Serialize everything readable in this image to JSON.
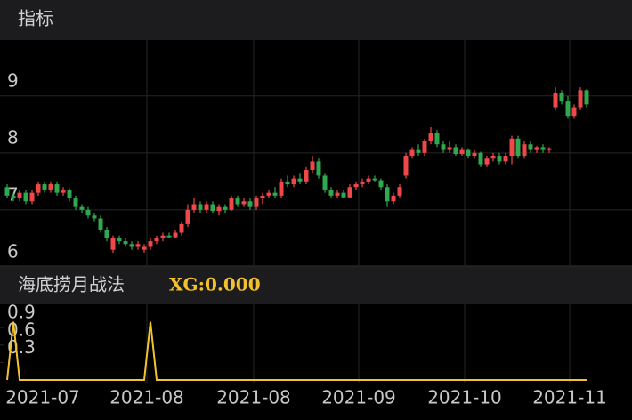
{
  "header": {
    "title": "指标"
  },
  "chart_data": [
    {
      "type": "candlestick",
      "ylim": [
        6.03,
        9.98
      ],
      "yticks": [
        6,
        7,
        8,
        9
      ],
      "grid": true,
      "up_color": "#f04848",
      "down_color": "#2fa84f",
      "x_labels": [
        "2021-07",
        "2021-08",
        "2021-08",
        "2021-09",
        "2021-10",
        "2021-11"
      ],
      "candles": [
        [
          7.4,
          7.45,
          7.2,
          7.25
        ],
        [
          7.25,
          7.3,
          7.15,
          7.2
        ],
        [
          7.2,
          7.35,
          7.15,
          7.3
        ],
        [
          7.3,
          7.35,
          7.1,
          7.15
        ],
        [
          7.15,
          7.35,
          7.1,
          7.3
        ],
        [
          7.3,
          7.5,
          7.25,
          7.45
        ],
        [
          7.45,
          7.5,
          7.3,
          7.35
        ],
        [
          7.35,
          7.5,
          7.3,
          7.45
        ],
        [
          7.45,
          7.5,
          7.25,
          7.3
        ],
        [
          7.3,
          7.4,
          7.25,
          7.35
        ],
        [
          7.35,
          7.38,
          7.15,
          7.2
        ],
        [
          7.2,
          7.25,
          7.0,
          7.05
        ],
        [
          7.05,
          7.1,
          6.95,
          7.0
        ],
        [
          7.0,
          7.05,
          6.85,
          6.9
        ],
        [
          6.9,
          6.95,
          6.8,
          6.85
        ],
        [
          6.85,
          6.9,
          6.6,
          6.65
        ],
        [
          6.65,
          6.7,
          6.45,
          6.5
        ],
        [
          6.3,
          6.55,
          6.25,
          6.5
        ],
        [
          6.5,
          6.55,
          6.4,
          6.45
        ],
        [
          6.45,
          6.5,
          6.35,
          6.4
        ],
        [
          6.4,
          6.45,
          6.3,
          6.35
        ],
        [
          6.35,
          6.45,
          6.3,
          6.4
        ],
        [
          6.3,
          6.4,
          6.25,
          6.35
        ],
        [
          6.35,
          6.5,
          6.3,
          6.45
        ],
        [
          6.45,
          6.55,
          6.4,
          6.5
        ],
        [
          6.5,
          6.6,
          6.45,
          6.55
        ],
        [
          6.55,
          6.6,
          6.5,
          6.52
        ],
        [
          6.52,
          6.65,
          6.5,
          6.6
        ],
        [
          6.6,
          6.8,
          6.55,
          6.75
        ],
        [
          6.75,
          7.1,
          6.7,
          7.0
        ],
        [
          7.0,
          7.2,
          6.95,
          7.1
        ],
        [
          7.1,
          7.15,
          6.95,
          7.0
        ],
        [
          7.0,
          7.15,
          6.95,
          7.1
        ],
        [
          7.1,
          7.15,
          6.95,
          6.98
        ],
        [
          6.98,
          7.1,
          6.9,
          7.05
        ],
        [
          7.05,
          7.1,
          6.95,
          7.0
        ],
        [
          7.0,
          7.25,
          6.98,
          7.2
        ],
        [
          7.2,
          7.25,
          7.05,
          7.1
        ],
        [
          7.1,
          7.2,
          7.05,
          7.15
        ],
        [
          7.15,
          7.2,
          7.0,
          7.05
        ],
        [
          7.05,
          7.25,
          7.0,
          7.2
        ],
        [
          7.2,
          7.3,
          7.1,
          7.25
        ],
        [
          7.25,
          7.35,
          7.2,
          7.3
        ],
        [
          7.3,
          7.4,
          7.2,
          7.25
        ],
        [
          7.25,
          7.55,
          7.2,
          7.5
        ],
        [
          7.5,
          7.6,
          7.4,
          7.45
        ],
        [
          7.45,
          7.6,
          7.4,
          7.55
        ],
        [
          7.55,
          7.65,
          7.45,
          7.5
        ],
        [
          7.5,
          7.75,
          7.45,
          7.7
        ],
        [
          7.7,
          7.95,
          7.65,
          7.85
        ],
        [
          7.85,
          7.9,
          7.55,
          7.6
        ],
        [
          7.6,
          7.65,
          7.3,
          7.35
        ],
        [
          7.35,
          7.4,
          7.2,
          7.25
        ],
        [
          7.25,
          7.35,
          7.2,
          7.3
        ],
        [
          7.3,
          7.35,
          7.2,
          7.22
        ],
        [
          7.22,
          7.45,
          7.2,
          7.4
        ],
        [
          7.4,
          7.5,
          7.35,
          7.45
        ],
        [
          7.45,
          7.55,
          7.4,
          7.5
        ],
        [
          7.5,
          7.6,
          7.45,
          7.55
        ],
        [
          7.55,
          7.6,
          7.5,
          7.52
        ],
        [
          7.52,
          7.55,
          7.35,
          7.4
        ],
        [
          7.4,
          7.45,
          7.05,
          7.15
        ],
        [
          7.15,
          7.3,
          7.1,
          7.25
        ],
        [
          7.25,
          7.45,
          7.2,
          7.4
        ],
        [
          7.6,
          8.0,
          7.55,
          7.95
        ],
        [
          7.95,
          8.1,
          7.9,
          8.05
        ],
        [
          8.05,
          8.15,
          7.95,
          8.0
        ],
        [
          8.0,
          8.25,
          7.95,
          8.2
        ],
        [
          8.2,
          8.45,
          8.15,
          8.35
        ],
        [
          8.35,
          8.4,
          8.1,
          8.15
        ],
        [
          8.15,
          8.2,
          8.0,
          8.05
        ],
        [
          8.05,
          8.2,
          8.0,
          8.1
        ],
        [
          8.1,
          8.15,
          7.95,
          7.98
        ],
        [
          7.98,
          8.1,
          7.95,
          8.05
        ],
        [
          8.05,
          8.08,
          7.9,
          7.95
        ],
        [
          7.95,
          8.05,
          7.9,
          8.0
        ],
        [
          8.0,
          8.02,
          7.75,
          7.8
        ],
        [
          7.8,
          7.95,
          7.75,
          7.9
        ],
        [
          7.9,
          8.0,
          7.85,
          7.95
        ],
        [
          7.95,
          8.0,
          7.8,
          7.85
        ],
        [
          7.85,
          8.0,
          7.8,
          7.95
        ],
        [
          7.95,
          8.3,
          7.8,
          8.25
        ],
        [
          8.25,
          8.3,
          7.9,
          7.95
        ],
        [
          7.95,
          8.2,
          7.9,
          8.15
        ],
        [
          8.15,
          8.2,
          8.0,
          8.05
        ],
        [
          8.05,
          8.12,
          8.0,
          8.1
        ],
        [
          8.1,
          8.15,
          8.0,
          8.05
        ],
        [
          8.05,
          8.1,
          8.0,
          8.08
        ],
        [
          8.8,
          9.15,
          8.75,
          9.05
        ],
        [
          9.05,
          9.1,
          8.85,
          8.9
        ],
        [
          8.9,
          9.0,
          8.6,
          8.65
        ],
        [
          8.65,
          8.85,
          8.6,
          8.8
        ],
        [
          8.8,
          9.15,
          8.75,
          9.1
        ],
        [
          9.1,
          9.12,
          8.8,
          8.85
        ]
      ]
    },
    {
      "type": "line",
      "title": "海底捞月战法",
      "label": "XG:0.000",
      "color": "#f2c12e",
      "ylim": [
        0,
        1.3
      ],
      "yticks": [
        0.3,
        0.6,
        0.9
      ],
      "values": [
        0,
        1,
        0,
        0,
        0,
        0,
        0,
        0,
        0,
        0,
        0,
        0,
        0,
        0,
        0,
        0,
        0,
        0,
        0,
        0,
        0,
        0,
        0,
        1,
        0,
        0,
        0,
        0,
        0,
        0,
        0,
        0,
        0,
        0,
        0,
        0,
        0,
        0,
        0,
        0,
        0,
        0,
        0,
        0,
        0,
        0,
        0,
        0,
        0,
        0,
        0,
        0,
        0,
        0,
        0,
        0,
        0,
        0,
        0,
        0,
        0,
        0,
        0,
        0,
        0,
        0,
        0,
        0,
        0,
        0,
        0,
        0,
        0,
        0,
        0,
        0,
        0,
        0,
        0,
        0,
        0,
        0,
        0,
        0,
        0,
        0,
        0,
        0,
        0,
        0,
        0,
        0,
        0,
        0
      ]
    }
  ]
}
